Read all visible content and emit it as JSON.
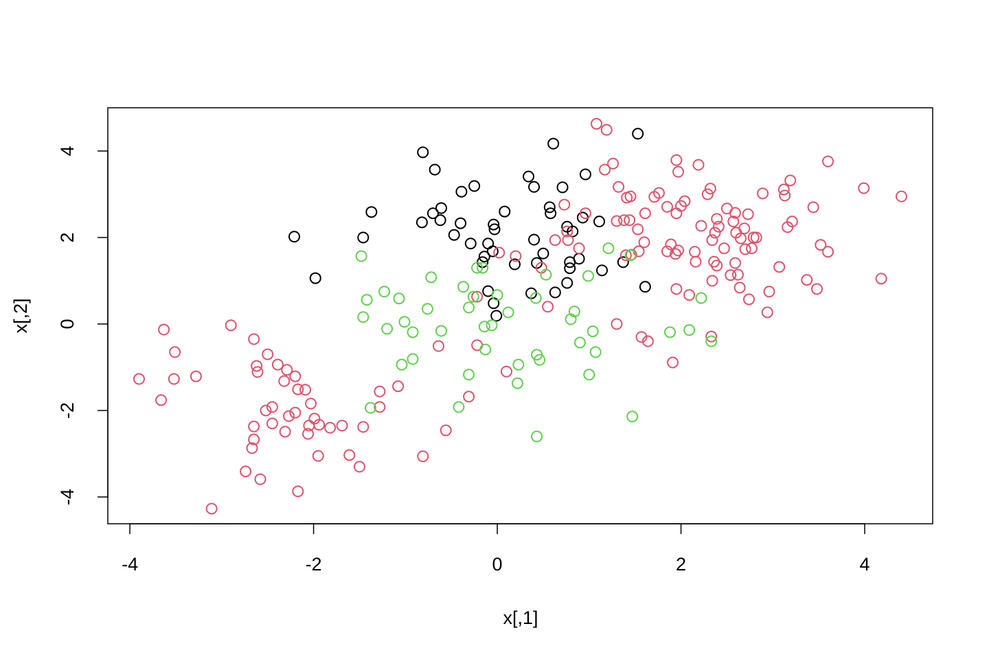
{
  "chart_data": {
    "type": "scatter",
    "xlabel": "x[,1]",
    "ylabel": "x[,2]",
    "xlim": [
      -4.24,
      4.74
    ],
    "ylim": [
      -4.62,
      5.0
    ],
    "xticks": [
      -4,
      -2,
      0,
      2,
      4
    ],
    "yticks": [
      -4,
      -2,
      0,
      2,
      4
    ],
    "grid": false,
    "series": [
      {
        "color": "#000000",
        "x": [
          -0.81,
          -0.68,
          1.53,
          0.61,
          0.34,
          0.4,
          0.71,
          0.96,
          -0.25,
          -0.39,
          -0.61,
          -0.7,
          -1.37,
          -0.82,
          -0.62,
          -0.4,
          0.08,
          0.57,
          0.58,
          0.93,
          1.11,
          0.76,
          0.82,
          -0.04,
          -0.03,
          -2.21,
          -1.46,
          -0.47,
          -0.29,
          -0.1,
          0.4,
          0.5,
          -0.05,
          -0.14,
          -0.16,
          0.19,
          0.43,
          0.79,
          0.89,
          0.79,
          1.14,
          1.37,
          -1.98,
          0.76,
          1.61,
          -0.1,
          0.37,
          0.63,
          -0.04,
          -0.01
        ],
        "y": [
          3.97,
          3.57,
          4.4,
          4.17,
          3.41,
          3.17,
          3.16,
          3.46,
          3.19,
          3.06,
          2.68,
          2.56,
          2.59,
          2.35,
          2.4,
          2.33,
          2.6,
          2.7,
          2.56,
          2.46,
          2.37,
          2.25,
          2.14,
          2.3,
          2.19,
          2.02,
          2.0,
          2.06,
          1.86,
          1.86,
          1.95,
          1.63,
          1.68,
          1.56,
          1.43,
          1.38,
          1.41,
          1.43,
          1.51,
          1.29,
          1.24,
          1.43,
          1.06,
          0.95,
          0.86,
          0.76,
          0.71,
          0.73,
          0.48,
          0.19
        ]
      },
      {
        "color": "#DF536B",
        "x": [
          -3.9,
          -3.63,
          -3.51,
          -3.52,
          -3.28,
          -3.66,
          -2.9,
          -2.65,
          -2.62,
          -2.61,
          -2.39,
          -2.29,
          -2.5,
          -2.32,
          -2.2,
          -2.17,
          -2.09,
          -2.03,
          -2.45,
          -2.52,
          -2.27,
          -2.2,
          -2.45,
          -2.31,
          -2.65,
          -2.65,
          -2.67,
          -1.99,
          -1.94,
          -2.05,
          -2.06,
          -1.82,
          -1.69,
          -1.46,
          -1.28,
          -1.08,
          -1.28,
          -1.61,
          -1.95,
          -1.5,
          -2.74,
          -2.58,
          -2.17,
          -3.11,
          -0.81,
          -0.56,
          -0.31,
          0.1,
          -0.22,
          -0.64,
          1.08,
          1.19,
          1.26,
          1.17,
          0.73,
          0.96,
          0.76,
          0.63,
          0.89,
          0.77,
          0.02,
          0.2,
          -0.22,
          0.55,
          0.48,
          1.3,
          1.57,
          1.64,
          1.91,
          2.33,
          1.32,
          1.41,
          1.45,
          1.61,
          1.71,
          1.76,
          1.85,
          1.53,
          1.38,
          1.44,
          1.3,
          1.6,
          1.54,
          1.46,
          1.4,
          1.95,
          1.97,
          2.19,
          2.32,
          2.29,
          2.04,
          2.0,
          1.95,
          2.22,
          2.39,
          2.41,
          2.37,
          2.5,
          2.57,
          2.6,
          2.47,
          2.34,
          2.65,
          2.69,
          2.82,
          2.79,
          2.77,
          2.7,
          2.73,
          2.59,
          1.89,
          1.85,
          1.94,
          1.97,
          2.15,
          2.16,
          2.36,
          2.39,
          2.59,
          2.54,
          2.62,
          2.64,
          2.34,
          2.74,
          2.96,
          2.94,
          3.07,
          2.89,
          3.12,
          3.13,
          3.19,
          3.21,
          3.16,
          3.44,
          3.6,
          3.99,
          4.4,
          3.52,
          3.6,
          4.18,
          3.37,
          3.48,
          1.95,
          2.09
        ],
        "y": [
          -1.27,
          -0.13,
          -0.65,
          -1.27,
          -1.21,
          -1.76,
          -0.03,
          -0.35,
          -0.97,
          -1.11,
          -0.94,
          -1.06,
          -0.7,
          -1.32,
          -1.21,
          -1.51,
          -1.52,
          -1.84,
          -1.92,
          -2.0,
          -2.13,
          -2.05,
          -2.3,
          -2.49,
          -2.37,
          -2.67,
          -2.87,
          -2.19,
          -2.33,
          -2.35,
          -2.54,
          -2.4,
          -2.35,
          -2.38,
          -1.56,
          -1.44,
          -1.92,
          -3.03,
          -3.05,
          -3.3,
          -3.41,
          -3.59,
          -3.87,
          -4.27,
          -3.06,
          -2.46,
          -1.68,
          -1.1,
          -0.49,
          -0.51,
          4.63,
          4.49,
          3.71,
          3.57,
          2.76,
          2.56,
          2.14,
          1.94,
          1.75,
          1.94,
          1.65,
          1.57,
          0.63,
          0.4,
          1.3,
          0,
          -0.3,
          -0.4,
          -0.89,
          -0.29,
          3.17,
          2.92,
          2.95,
          2.56,
          2.94,
          3.03,
          2.71,
          2.19,
          2.4,
          2.4,
          2.38,
          1.89,
          1.68,
          1.6,
          1.59,
          3.79,
          3.52,
          3.68,
          3.13,
          3.0,
          2.84,
          2.73,
          2.56,
          2.27,
          2.43,
          2.25,
          2.11,
          2.67,
          2.37,
          2.11,
          1.75,
          1.94,
          1.98,
          2.21,
          2.0,
          2.0,
          1.75,
          1.73,
          2.54,
          2.57,
          1.84,
          1.68,
          1.62,
          1.7,
          1.67,
          1.44,
          1.44,
          1.35,
          1.41,
          1.13,
          1.14,
          0.84,
          1.0,
          0.57,
          0.75,
          0.27,
          1.32,
          3.02,
          3.11,
          2.97,
          3.32,
          2.37,
          2.24,
          2.7,
          3.76,
          3.14,
          2.95,
          1.83,
          1.67,
          1.05,
          1.02,
          0.81,
          0.81,
          0.67
        ]
      },
      {
        "color": "#61D04F",
        "x": [
          -1.48,
          -0.22,
          -0.16,
          -0.72,
          0.53,
          0.99,
          1.21,
          1.45,
          -1.23,
          -1.42,
          -1.07,
          -0.76,
          -0.37,
          -0.26,
          0,
          -0.31,
          0.42,
          -1.46,
          -1.01,
          -1.2,
          -0.92,
          -0.61,
          -0.14,
          -0.06,
          0.12,
          0.84,
          0.8,
          1.04,
          1.07,
          0.9,
          1.88,
          2.09,
          2.22,
          2.33,
          -1.04,
          -0.92,
          -0.13,
          0.23,
          -0.31,
          0.22,
          0.46,
          0.43,
          1.0,
          -1.38,
          -0.42,
          0.43,
          1.47
        ],
        "y": [
          1.57,
          1.3,
          1.3,
          1.08,
          1.14,
          1.11,
          1.75,
          1.59,
          0.75,
          0.56,
          0.59,
          0.35,
          0.86,
          0.63,
          0.67,
          0.38,
          0.6,
          0.16,
          0.05,
          -0.11,
          -0.19,
          -0.16,
          -0.06,
          -0.03,
          0.27,
          0.29,
          0.11,
          -0.17,
          -0.65,
          -0.43,
          -0.19,
          -0.14,
          0.6,
          -0.4,
          -0.94,
          -0.81,
          -0.59,
          -0.94,
          -1.17,
          -1.37,
          -0.83,
          -0.71,
          -1.17,
          -1.94,
          -1.92,
          -2.6,
          -2.14
        ]
      }
    ]
  }
}
